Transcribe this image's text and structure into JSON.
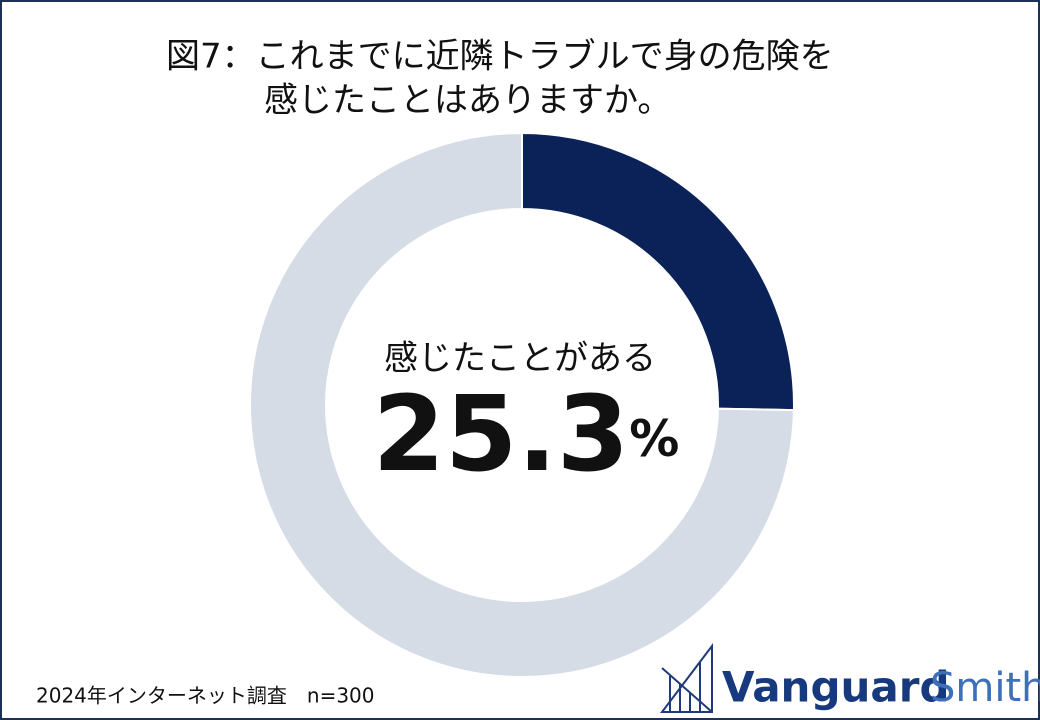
{
  "chart_data": {
    "type": "pie",
    "title": [
      "図7：これまでに近隣トラブルで身の危険を",
      "感じたことはありますか。"
    ],
    "categories": [
      "感じたことがある",
      null
    ],
    "values": [
      25.3,
      74.7
    ],
    "value_labels": [
      "25.3%",
      null
    ],
    "colors": [
      "#0b2259",
      "#d5dce6"
    ],
    "donut": true,
    "footnote": "2024年インターネット調査　n=300",
    "logo": [
      "Vanguard",
      "Smith"
    ]
  }
}
